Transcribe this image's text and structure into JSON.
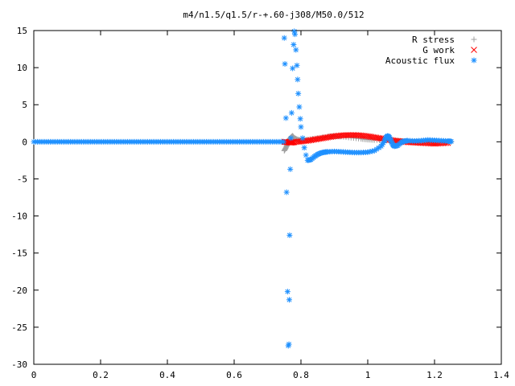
{
  "chart_data": {
    "type": "scatter",
    "title": "m4/n1.5/q1.5/r-+.60-j308/M50.0/512",
    "xlabel": "",
    "ylabel": "",
    "xlim": [
      0,
      1.4
    ],
    "ylim": [
      -30,
      15
    ],
    "x_ticks": [
      0,
      0.2,
      0.4,
      0.6,
      0.8,
      1,
      1.2,
      1.4
    ],
    "x_tick_labels": [
      "0",
      "0.2",
      "0.4",
      "0.6",
      "0.8",
      "1",
      "1.2",
      "1.4"
    ],
    "y_ticks": [
      -30,
      -25,
      -20,
      -15,
      -10,
      -5,
      0,
      5,
      10,
      15
    ],
    "y_tick_labels": [
      "-30",
      "-25",
      "-20",
      "-15",
      "-10",
      "-5",
      "0",
      "5",
      "10",
      "15"
    ],
    "grid": false,
    "legend_position": "top-right",
    "series": [
      {
        "name": "R stress",
        "marker": "plus",
        "color": "#a0a0a0",
        "points": [
          [
            0.75,
            -1.2
          ],
          [
            0.755,
            -0.8
          ],
          [
            0.76,
            -0.3
          ],
          [
            0.765,
            0.3
          ],
          [
            0.77,
            0.6
          ],
          [
            0.775,
            0.8
          ],
          [
            0.78,
            0.5
          ],
          [
            0.79,
            0.3
          ],
          [
            0.8,
            0.2
          ],
          [
            0.82,
            0.3
          ],
          [
            0.85,
            0.5
          ],
          [
            0.88,
            0.7
          ],
          [
            0.9,
            0.75
          ],
          [
            0.92,
            0.7
          ],
          [
            0.95,
            0.55
          ],
          [
            0.98,
            0.4
          ],
          [
            1.0,
            0.3
          ],
          [
            1.02,
            0.25
          ],
          [
            1.05,
            0.2
          ],
          [
            1.08,
            0.15
          ],
          [
            1.1,
            0.1
          ],
          [
            1.12,
            0.05
          ],
          [
            1.15,
            0.02
          ],
          [
            1.18,
            0.0
          ],
          [
            1.2,
            0.0
          ],
          [
            1.22,
            0.0
          ],
          [
            1.25,
            0.0
          ]
        ]
      },
      {
        "name": "G work",
        "marker": "cross",
        "color": "#ff0000",
        "points": [
          [
            0.75,
            0.0
          ],
          [
            0.76,
            -0.05
          ],
          [
            0.77,
            -0.1
          ],
          [
            0.78,
            -0.05
          ],
          [
            0.8,
            0.05
          ],
          [
            0.82,
            0.15
          ],
          [
            0.84,
            0.3
          ],
          [
            0.86,
            0.45
          ],
          [
            0.88,
            0.6
          ],
          [
            0.9,
            0.75
          ],
          [
            0.92,
            0.85
          ],
          [
            0.94,
            0.9
          ],
          [
            0.96,
            0.9
          ],
          [
            0.98,
            0.85
          ],
          [
            1.0,
            0.75
          ],
          [
            1.02,
            0.6
          ],
          [
            1.04,
            0.45
          ],
          [
            1.06,
            0.3
          ],
          [
            1.08,
            0.15
          ],
          [
            1.1,
            0.05
          ],
          [
            1.12,
            -0.05
          ],
          [
            1.14,
            -0.1
          ],
          [
            1.16,
            -0.15
          ],
          [
            1.18,
            -0.2
          ],
          [
            1.2,
            -0.25
          ],
          [
            1.22,
            -0.2
          ],
          [
            1.24,
            -0.15
          ]
        ]
      },
      {
        "name": "Acoustic flux",
        "marker": "star",
        "color": "#1e90ff",
        "points": [
          [
            0.75,
            14.0
          ],
          [
            0.752,
            10.5
          ],
          [
            0.755,
            3.2
          ],
          [
            0.757,
            -6.8
          ],
          [
            0.76,
            -20.2
          ],
          [
            0.762,
            -27.5
          ],
          [
            0.764,
            -27.3
          ],
          [
            0.765,
            -21.3
          ],
          [
            0.766,
            -12.6
          ],
          [
            0.768,
            -3.7
          ],
          [
            0.77,
            0.5
          ],
          [
            0.772,
            3.9
          ],
          [
            0.775,
            9.9
          ],
          [
            0.778,
            13.1
          ],
          [
            0.78,
            14.9
          ],
          [
            0.782,
            14.5
          ],
          [
            0.785,
            12.4
          ],
          [
            0.788,
            10.3
          ],
          [
            0.79,
            8.4
          ],
          [
            0.792,
            6.5
          ],
          [
            0.795,
            4.7
          ],
          [
            0.798,
            3.1
          ],
          [
            0.8,
            2.0
          ],
          [
            0.805,
            0.5
          ],
          [
            0.81,
            -0.8
          ],
          [
            0.815,
            -1.8
          ],
          [
            0.82,
            -2.5
          ],
          [
            0.83,
            -2.4
          ],
          [
            0.84,
            -2.0
          ],
          [
            0.85,
            -1.7
          ],
          [
            0.86,
            -1.5
          ],
          [
            0.87,
            -1.4
          ],
          [
            0.88,
            -1.35
          ],
          [
            0.9,
            -1.3
          ],
          [
            0.92,
            -1.35
          ],
          [
            0.94,
            -1.4
          ],
          [
            0.96,
            -1.45
          ],
          [
            0.98,
            -1.45
          ],
          [
            1.0,
            -1.4
          ],
          [
            1.02,
            -1.2
          ],
          [
            1.04,
            -0.6
          ],
          [
            1.05,
            0.1
          ],
          [
            1.055,
            0.6
          ],
          [
            1.06,
            0.8
          ],
          [
            1.065,
            0.6
          ],
          [
            1.07,
            0.1
          ],
          [
            1.075,
            -0.4
          ],
          [
            1.08,
            -0.6
          ],
          [
            1.09,
            -0.5
          ],
          [
            1.1,
            -0.1
          ],
          [
            1.11,
            0.1
          ],
          [
            1.12,
            0.15
          ],
          [
            1.14,
            0.1
          ],
          [
            1.16,
            0.15
          ],
          [
            1.18,
            0.25
          ],
          [
            1.2,
            0.2
          ],
          [
            1.22,
            0.15
          ],
          [
            1.24,
            0.1
          ],
          [
            1.25,
            0.05
          ]
        ],
        "flat_segment": {
          "x_start": 0.0,
          "x_end": 0.75,
          "y": 0.0
        }
      }
    ]
  }
}
